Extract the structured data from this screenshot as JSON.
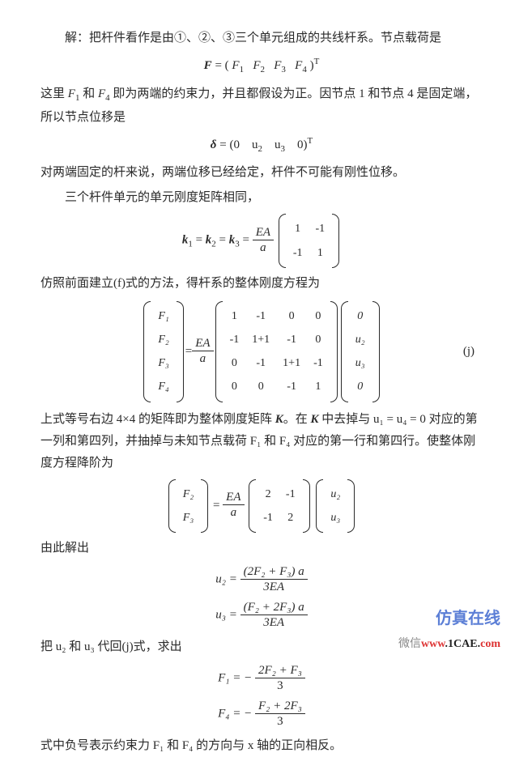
{
  "p1": "解：把杆件看作是由①、②、③三个单元组成的共线杆系。节点载荷是",
  "eq1_lhs": "F",
  "eq1_rhs_open": "= (",
  "eq1_f1": "F",
  "eq1_s1": "1",
  "eq1_f2": "F",
  "eq1_s2": "2",
  "eq1_f3": "F",
  "eq1_s3": "3",
  "eq1_f4": "F",
  "eq1_s4": "4",
  "eq1_close": ")",
  "eq1_T": "T",
  "p2a": "这里 ",
  "p2_F1": "F",
  "p2_F1s": "1",
  "p2b": " 和 ",
  "p2_F4": "F",
  "p2_F4s": "4",
  "p2c": " 即为两端的约束力，并且都假设为正。因节点 1 和节点 4 是固定端，所以节点位移是",
  "eq2_lhs": "δ",
  "eq2_rhs": "= (0　u",
  "eq2_u2": "2",
  "eq2_sp": "　u",
  "eq2_u3": "3",
  "eq2_end": "　0)",
  "eq2_T": "T",
  "p3": "对两端固定的杆来说，两端位移已经给定，杆件不可能有刚性位移。",
  "p4": "三个杆件单元的单元刚度矩阵相同，",
  "eq3_l": "k",
  "eq3_l1": "1",
  "eq3_eq1": " = ",
  "eq3_k2": "k",
  "eq3_l2": "2",
  "eq3_eq2": " = ",
  "eq3_k3": "k",
  "eq3_l3": "3",
  "eq3_eq3": " = ",
  "eq3_fn": "EA",
  "eq3_fd": "a",
  "m2": [
    [
      "1",
      "-1"
    ],
    [
      "-1",
      "1"
    ]
  ],
  "p5": "仿照前面建立(f)式的方法，得杆系的整体刚度方程为",
  "mF": [
    "F₁",
    "F₂",
    "F₃",
    "F₄"
  ],
  "eq4_eq": " = ",
  "eq4_fn": "EA",
  "eq4_fd": "a",
  "m4": [
    [
      "1",
      "-1",
      "0",
      "0"
    ],
    [
      "-1",
      "1+1",
      "-1",
      "0"
    ],
    [
      "0",
      "-1",
      "1+1",
      "-1"
    ],
    [
      "0",
      "0",
      "-1",
      "1"
    ]
  ],
  "mU": [
    "0",
    "u₂",
    "u₃",
    "0"
  ],
  "label_j": "(j)",
  "p6a": "上式等号右边 4×4 的矩阵即为整体刚度矩阵 ",
  "p6K": "K",
  "p6b": "。在 ",
  "p6K2": "K",
  "p6c": " 中去掉与 u₁ = u₄ = 0 对应的第一列和第四列，并抽掉与未知节点载荷 F₁ 和 F₄ 对应的第一行和第四行。使整体刚度方程降阶为",
  "mF2": [
    "F₂",
    "F₃"
  ],
  "eq5_eq": " = ",
  "eq5_fn": "EA",
  "eq5_fd": "a",
  "m22": [
    [
      "2",
      "-1"
    ],
    [
      "-1",
      "2"
    ]
  ],
  "mU2": [
    "u₂",
    "u₃"
  ],
  "p7": "由此解出",
  "eq6_l": "u₂ = ",
  "eq6_n": "(2F₂ + F₃) a",
  "eq6_d": "3EA",
  "eq7_l": "u₃ = ",
  "eq7_n": "(F₂ + 2F₃) a",
  "eq7_d": "3EA",
  "p8": "把 u₂ 和 u₃ 代回(j)式，求出",
  "eq8_l": "F₁ = − ",
  "eq8_n": "2F₂ + F₃",
  "eq8_d": "3",
  "eq9_l": "F₄ = − ",
  "eq9_n": "F₂ + 2F₃",
  "eq9_d": "3",
  "p9": "式中负号表示约束力 F₁ 和 F₄ 的方向与 x 轴的正向相反。",
  "wm1": "仿真在线",
  "wm2_wx": "微信",
  "wm2_red": "www",
  "wm2_dot": ".1CAE.",
  "wm2_com": "com"
}
